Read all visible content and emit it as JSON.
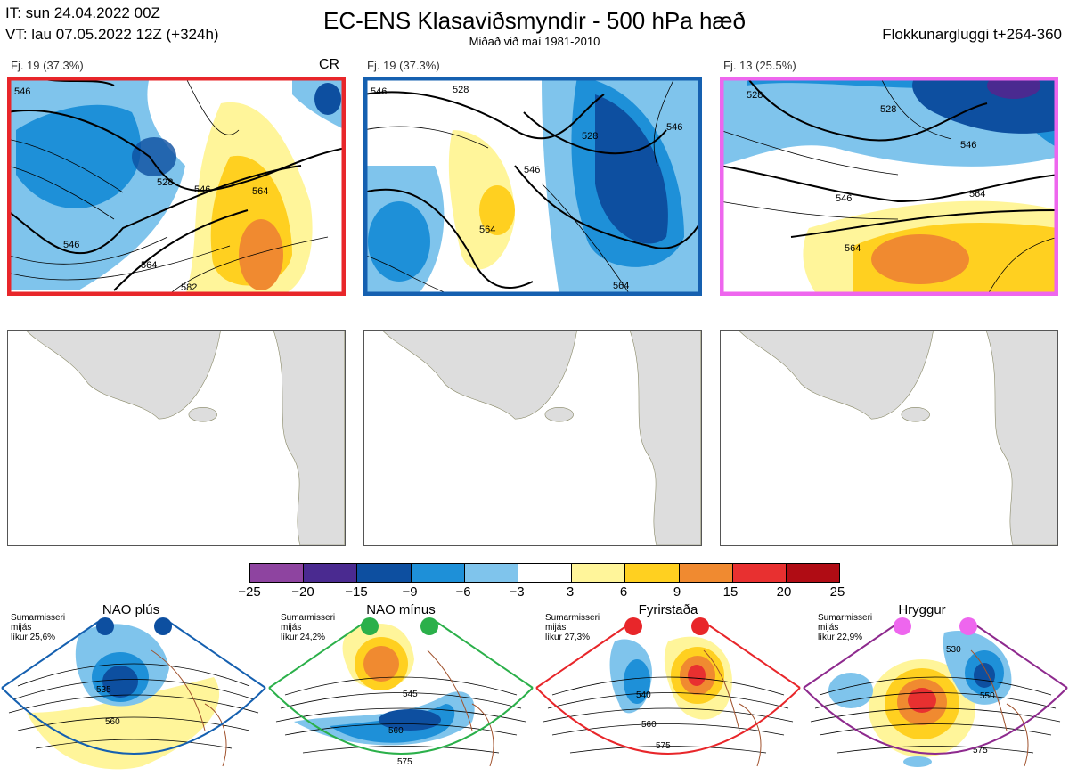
{
  "header": {
    "it": "IT: sun 24.04.2022 00Z",
    "vt": "VT: lau 07.05.2022 12Z  (+324h)",
    "title": "EC-ENS Klasaviðsmyndir - 500 hPa hæð",
    "subtitle": "Miðað við maí 1981-2010",
    "window": "Flokkunargluggi t+264-360"
  },
  "clusters": [
    {
      "label": "Fj. 19 (37.3%)",
      "badge": "CR",
      "border_color": "#e8262a",
      "contours": [
        "546",
        "528",
        "546",
        "564",
        "564",
        "546",
        "582"
      ]
    },
    {
      "label": "Fj. 19 (37.3%)",
      "badge": "",
      "border_color": "#1560b0",
      "contours": [
        "546",
        "528",
        "528",
        "546",
        "546",
        "564",
        "564"
      ]
    },
    {
      "label": "Fj. 13 (25.5%)",
      "badge": "",
      "border_color": "#ee66ee",
      "contours": [
        "528",
        "528",
        "546",
        "546",
        "564",
        "564"
      ]
    }
  ],
  "colorbar": {
    "ticks": [
      "−25",
      "−20",
      "−15",
      "−9",
      "−6",
      "−3",
      "3",
      "6",
      "9",
      "15",
      "20",
      "25"
    ],
    "colors": [
      "#8e44a0",
      "#4a2a90",
      "#0d4fa0",
      "#1e90d8",
      "#7fc4ec",
      "#ffffff",
      "#fff59a",
      "#ffd020",
      "#f08a30",
      "#e83030",
      "#b00c14"
    ]
  },
  "regimes": [
    {
      "name": "NAO plús",
      "season": "Sumarmisseri",
      "freq_label": "mijás",
      "prob": "líkur 25,6%",
      "dot_color": "#0d4fa0",
      "frame_color": "#1560b0",
      "contours": [
        "535",
        "560"
      ]
    },
    {
      "name": "NAO mínus",
      "season": "Sumarmisseri",
      "freq_label": "mijás",
      "prob": "líkur 24,2%",
      "dot_color": "#2bb04a",
      "frame_color": "#2bb04a",
      "contours": [
        "545",
        "560",
        "575"
      ]
    },
    {
      "name": "Fyrirstaða",
      "season": "Sumarmisseri",
      "freq_label": "mijás",
      "prob": "líkur 27,3%",
      "dot_color": "#e8262a",
      "frame_color": "#e8262a",
      "contours": [
        "540",
        "560",
        "575"
      ]
    },
    {
      "name": "Hryggur",
      "season": "Sumarmisseri",
      "freq_label": "mijás",
      "prob": "líkur 22,9%",
      "dot_color": "#ee66ee",
      "frame_color": "#8e2a8e",
      "contours": [
        "530",
        "550",
        "575"
      ]
    }
  ]
}
